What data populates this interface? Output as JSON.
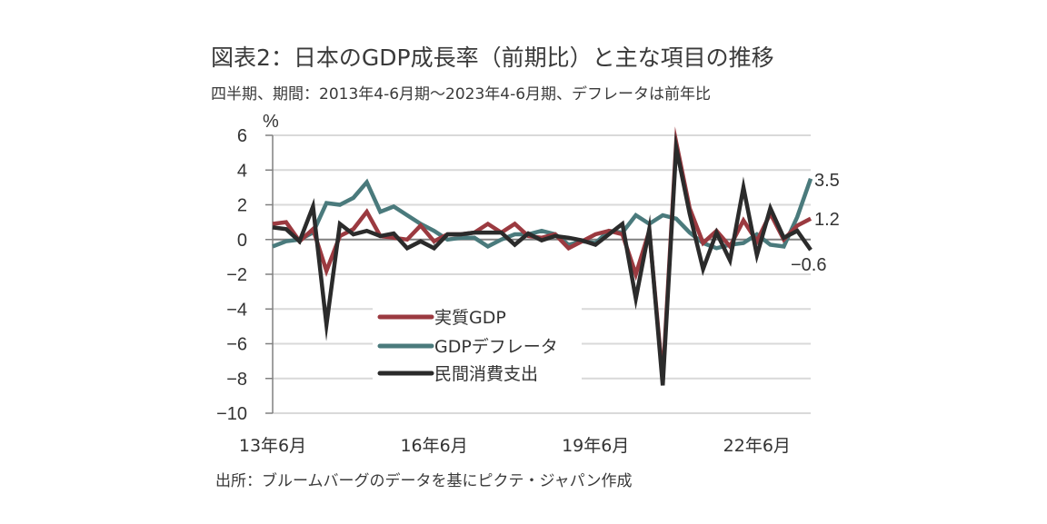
{
  "chart_data": {
    "type": "line",
    "title": "図表2：日本のGDP成長率（前期比）と主な項目の推移",
    "subtitle": "四半期、期間：2013年4-6月期～2023年4-6月期、デフレータは前年比",
    "source": "出所：ブルームバーグのデータを基にピクテ・ジャパン作成",
    "ylabel": "%",
    "xlabel": "",
    "ylim": [
      -10,
      6
    ],
    "yticks": [
      6,
      4,
      2,
      0,
      -2,
      -4,
      -6,
      -8,
      -10
    ],
    "ytick_labels": [
      "6",
      "4",
      "2",
      "0",
      "−2",
      "−4",
      "−6",
      "−8",
      "−10"
    ],
    "x_count": 41,
    "xtick_labels": [
      {
        "label": "13年6月",
        "index": 0
      },
      {
        "label": "16年6月",
        "index": 12
      },
      {
        "label": "19年6月",
        "index": 24
      },
      {
        "label": "22年6月",
        "index": 36
      }
    ],
    "grid": true,
    "legend_position": "lower-left",
    "series": [
      {
        "name": "実質GDP",
        "color": "#9b3a40",
        "end_label": "1.2",
        "values": [
          0.9,
          1.0,
          -0.1,
          0.6,
          -1.8,
          0.2,
          0.6,
          1.6,
          0.2,
          0.1,
          0.0,
          0.8,
          -0.1,
          0.3,
          0.3,
          0.4,
          0.9,
          0.4,
          0.9,
          0.2,
          0.1,
          0.3,
          -0.5,
          -0.1,
          0.3,
          0.5,
          0.3,
          -2.0,
          0.5,
          -8.0,
          5.6,
          1.8,
          -0.2,
          0.5,
          -0.4,
          1.1,
          -0.1,
          1.5,
          0.0,
          0.8,
          1.2
        ]
      },
      {
        "name": "GDPデフレータ",
        "color": "#4a7a7c",
        "end_label": "3.5",
        "values": [
          -0.4,
          -0.1,
          0.0,
          0.4,
          2.1,
          2.0,
          2.4,
          3.3,
          1.6,
          1.9,
          1.4,
          0.9,
          0.5,
          0.0,
          0.1,
          0.1,
          -0.4,
          0.0,
          0.3,
          0.3,
          0.5,
          0.3,
          -0.3,
          -0.1,
          -0.2,
          0.5,
          0.4,
          1.4,
          0.9,
          1.4,
          1.2,
          0.4,
          -0.2,
          -0.5,
          -0.3,
          -0.2,
          0.3,
          -0.3,
          -0.4,
          1.3,
          3.5
        ]
      },
      {
        "name": "民間消費支出",
        "color": "#2b2b2b",
        "end_label": "-0.6",
        "values": [
          0.7,
          0.6,
          -0.1,
          1.9,
          -4.9,
          0.9,
          0.3,
          0.5,
          0.2,
          0.35,
          -0.5,
          -0.1,
          -0.5,
          0.3,
          0.3,
          0.4,
          0.4,
          0.4,
          -0.3,
          0.35,
          -0.05,
          0.2,
          0.1,
          -0.05,
          -0.3,
          0.3,
          0.9,
          -3.4,
          0.6,
          -8.4,
          5.3,
          1.5,
          -1.7,
          0.4,
          -1.2,
          3.0,
          -0.9,
          1.8,
          0.1,
          0.5,
          -0.6
        ]
      }
    ]
  }
}
